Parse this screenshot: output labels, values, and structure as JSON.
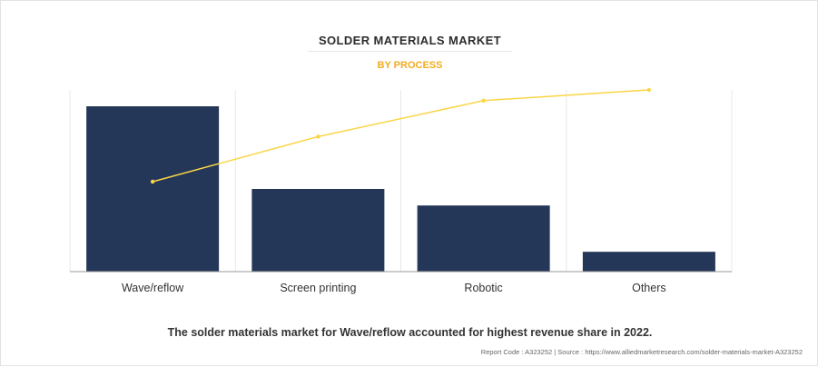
{
  "chart_data": {
    "type": "bar",
    "title": "SOLDER MATERIALS MARKET",
    "subtitle": "BY PROCESS",
    "categories": [
      "Wave/reflow",
      "Screen printing",
      "Robotic",
      "Others"
    ],
    "values": [
      100,
      50,
      40,
      12
    ],
    "cumulative": [
      49.5,
      74.3,
      94.1,
      100
    ],
    "ylim": [
      0,
      100
    ],
    "grid": "vertical",
    "colors": {
      "bar": "#253758",
      "line": "#f9d647"
    }
  },
  "caption": "The solder materials market for Wave/reflow accounted for highest revenue share in 2022.",
  "source": "Report Code : A323252  |  Source : https://www.alliedmarketresearch.com/solder-materials-market-A323252"
}
